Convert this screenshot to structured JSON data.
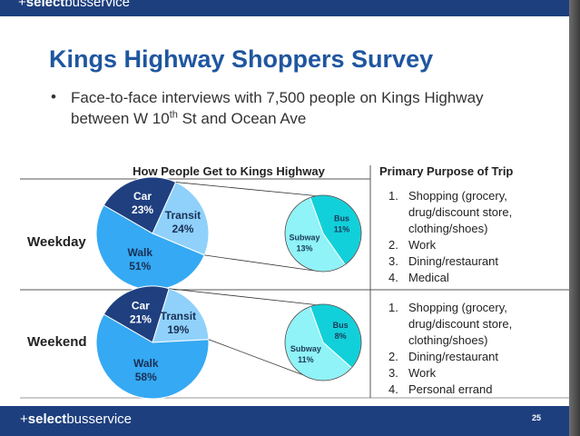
{
  "header": {
    "brand_prefix": "+",
    "brand_bold": "select",
    "brand_rest": "busservice"
  },
  "footer": {
    "brand_prefix": "+",
    "brand_bold": "select",
    "brand_rest": "busservice",
    "page_number": "25"
  },
  "title": "Kings Highway Shoppers Survey",
  "bullet": {
    "text_before": "Face-to-face interviews with 7,500 people on Kings Highway between W 10",
    "superscript": "th",
    "text_after": " St and Ocean Ave"
  },
  "purpose_header": "Primary Purpose of Trip",
  "purpose_weekday": [
    {
      "num": "1.",
      "text": "Shopping (grocery, drug/discount store, clothing/shoes)"
    },
    {
      "num": "2.",
      "text": "Work"
    },
    {
      "num": "3.",
      "text": "Dining/restaurant"
    },
    {
      "num": "4.",
      "text": "Medical"
    }
  ],
  "purpose_weekend": [
    {
      "num": "1.",
      "text": "Shopping (grocery, drug/discount store, clothing/shoes)"
    },
    {
      "num": "2.",
      "text": "Dining/restaurant"
    },
    {
      "num": "3.",
      "text": "Work"
    },
    {
      "num": "4.",
      "text": "Personal errand"
    }
  ],
  "colors": {
    "brand_blue": "#1d3f7e",
    "title_blue": "#1f56a0",
    "car": "#1f3f7f",
    "walk": "#35a9f3",
    "transit": "#8fd1fb",
    "bus": "#12d0d9",
    "subway": "#8ff3f7"
  },
  "chart_data": [
    {
      "type": "pie",
      "title": "How People Get to Kings Highway",
      "group_label": "Weekday",
      "slices": [
        {
          "label": "Car",
          "value": 23,
          "value_label": "23%"
        },
        {
          "label": "Transit",
          "value": 24,
          "value_label": "24%"
        },
        {
          "label": "Walk",
          "value": 51,
          "value_label": "51%"
        }
      ],
      "transit_breakdown": [
        {
          "label": "Bus",
          "value": 11,
          "value_label": "11%"
        },
        {
          "label": "Subway",
          "value": 13,
          "value_label": "13%"
        }
      ]
    },
    {
      "type": "pie",
      "group_label": "Weekend",
      "slices": [
        {
          "label": "Car",
          "value": 21,
          "value_label": "21%"
        },
        {
          "label": "Transit",
          "value": 19,
          "value_label": "19%"
        },
        {
          "label": "Walk",
          "value": 58,
          "value_label": "58%"
        }
      ],
      "transit_breakdown": [
        {
          "label": "Bus",
          "value": 8,
          "value_label": "8%"
        },
        {
          "label": "Subway",
          "value": 11,
          "value_label": "11%"
        }
      ]
    }
  ]
}
